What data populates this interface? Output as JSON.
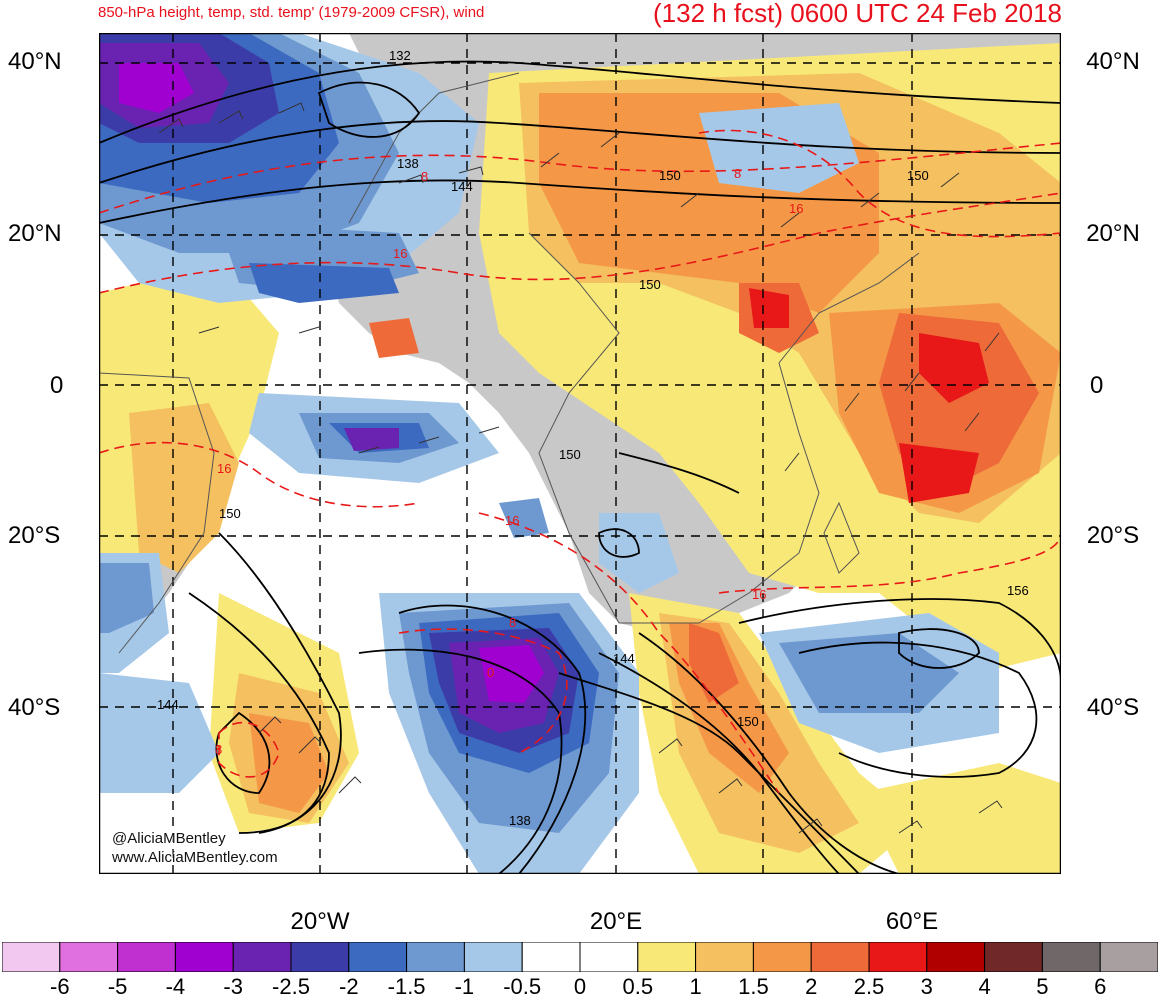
{
  "header": {
    "left": "850-hPa height, temp, std. temp' (1979-2009 CFSR), wind",
    "right": "(132 h fcst) 0600 UTC 24 Feb 2018"
  },
  "lat_labels": [
    "40°N",
    "20°N",
    "0",
    "20°S",
    "40°S"
  ],
  "lon_labels": [
    "20°W",
    "20°E",
    "60°E"
  ],
  "credits": [
    "@AliciaMBentley",
    "www.AliciaMBentley.com"
  ],
  "contour_labels": [
    "132",
    "138",
    "144",
    "150",
    "150",
    "150",
    "150",
    "150",
    "150",
    "156",
    "144",
    "144",
    "138",
    "150"
  ],
  "temp_labels": [
    "8",
    "16",
    "16",
    "8",
    "16",
    "16",
    "16",
    "8",
    "0",
    "8",
    "8"
  ],
  "colorbar": {
    "labels": [
      "-6",
      "-5",
      "-4",
      "-3",
      "-2.5",
      "-2",
      "-1.5",
      "-1",
      "-0.5",
      "0",
      "0.5",
      "1",
      "1.5",
      "2",
      "2.5",
      "3",
      "4",
      "5",
      "6"
    ],
    "colors": [
      "#f2c8f0",
      "#e070e0",
      "#c030d0",
      "#a000d0",
      "#6a22b0",
      "#3c3ca8",
      "#3c6ac0",
      "#6e98d0",
      "#a6c8e8",
      "#ffffff",
      "#ffffff",
      "#f8e878",
      "#f4c060",
      "#f49848",
      "#ee6a38",
      "#e81818",
      "#b00000",
      "#702828",
      "#706868",
      "#a8a0a0"
    ]
  }
}
